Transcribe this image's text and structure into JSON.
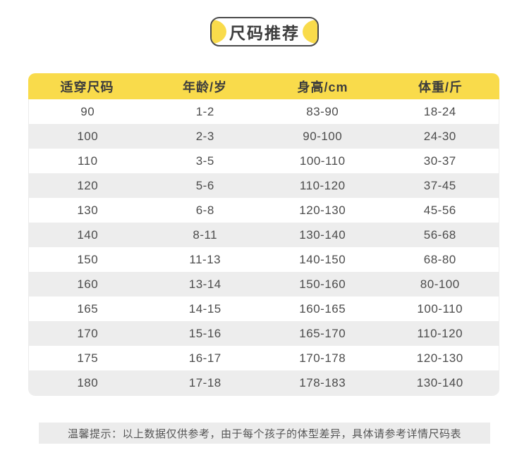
{
  "title": {
    "text": "尺码推荐"
  },
  "colors": {
    "accent_yellow": "#F9DB4B",
    "alt_row_gray": "#EDEDED",
    "note_bg_gray": "#ECECEC",
    "header_text": "#3D3D3D",
    "cell_text": "#4C4C4C"
  },
  "table": {
    "headers": [
      "适穿尺码",
      "年龄/岁",
      "身高/cm",
      "体重/斤"
    ],
    "rows": [
      [
        "90",
        "1-2",
        "83-90",
        "18-24"
      ],
      [
        "100",
        "2-3",
        "90-100",
        "24-30"
      ],
      [
        "110",
        "3-5",
        "100-110",
        "30-37"
      ],
      [
        "120",
        "5-6",
        "110-120",
        "37-45"
      ],
      [
        "130",
        "6-8",
        "120-130",
        "45-56"
      ],
      [
        "140",
        "8-11",
        "130-140",
        "56-68"
      ],
      [
        "150",
        "11-13",
        "140-150",
        "68-80"
      ],
      [
        "160",
        "13-14",
        "150-160",
        "80-100"
      ],
      [
        "165",
        "14-15",
        "160-165",
        "100-110"
      ],
      [
        "170",
        "15-16",
        "165-170",
        "110-120"
      ],
      [
        "175",
        "16-17",
        "170-178",
        "120-130"
      ],
      [
        "180",
        "17-18",
        "178-183",
        "130-140"
      ]
    ]
  },
  "note": {
    "text": "温馨提示：以上数据仅供参考，由于每个孩子的体型差异，具体请参考详情尺码表"
  }
}
